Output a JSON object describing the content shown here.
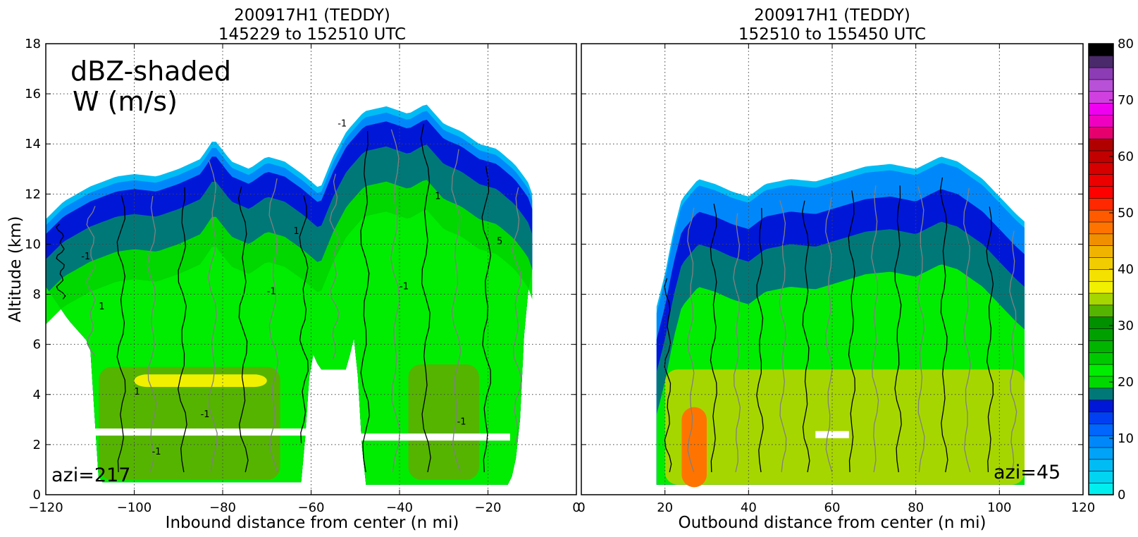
{
  "colors": {
    "dbz_levels": [
      "#00eeee",
      "#00d4f0",
      "#00bcf4",
      "#00a3f7",
      "#0088fb",
      "#0066fe",
      "#0040f2",
      "#0017d8",
      "#007878",
      "#00d800",
      "#00ec00",
      "#00c800",
      "#00b400",
      "#00a000",
      "#009000",
      "#55b400",
      "#a6d600",
      "#f0f000",
      "#f5e100",
      "#f0cc00",
      "#f0b400",
      "#f09000",
      "#ff7400",
      "#ff5a00",
      "#ff2800",
      "#ff0000",
      "#ec0000",
      "#d60000",
      "#c20000",
      "#b00000",
      "#e6006e",
      "#f000c0",
      "#f000f0",
      "#d040e0",
      "#b850d8",
      "#8c3cb4",
      "#4a2a6a",
      "#000000"
    ],
    "w_contour_positive": "#000000",
    "w_contour_negative": "#808080"
  },
  "chart_data": [
    {
      "type": "heatmap",
      "title_line1": "200917H1 (TEDDY)",
      "title_line2": "145229 to 152510 UTC",
      "xlabel": "Inbound distance from center (n mi)",
      "ylabel": "Altitude (km)",
      "xlim": [
        -120,
        0
      ],
      "ylim": [
        0,
        18
      ],
      "xticks": [
        "−120",
        "−100",
        "−80",
        "−60",
        "−40",
        "−20",
        "0"
      ],
      "yticks": [
        "0",
        "2",
        "4",
        "6",
        "8",
        "10",
        "12",
        "14",
        "16",
        "18"
      ],
      "grid": true,
      "annotation_main_1": "dBZ-shaded",
      "annotation_main_2": "W (m/s)",
      "azimuth_label": "azi=217",
      "contour_labels": [
        "1",
        "-1",
        "5"
      ],
      "echo_top_km": [
        [
          -120,
          11.0
        ],
        [
          -116,
          11.7
        ],
        [
          -110,
          12.3
        ],
        [
          -104,
          12.7
        ],
        [
          -100,
          12.8
        ],
        [
          -95,
          12.7
        ],
        [
          -90,
          13.0
        ],
        [
          -85,
          13.4
        ],
        [
          -82,
          14.2
        ],
        [
          -78,
          13.3
        ],
        [
          -74,
          13.0
        ],
        [
          -70,
          13.5
        ],
        [
          -66,
          13.3
        ],
        [
          -62,
          12.8
        ],
        [
          -58,
          12.2
        ],
        [
          -55,
          13.5
        ],
        [
          -52,
          14.5
        ],
        [
          -48,
          15.3
        ],
        [
          -43,
          15.5
        ],
        [
          -38,
          15.2
        ],
        [
          -34,
          15.6
        ],
        [
          -30,
          14.8
        ],
        [
          -26,
          14.5
        ],
        [
          -22,
          14.0
        ],
        [
          -18,
          13.8
        ],
        [
          -14,
          13.2
        ],
        [
          -11,
          12.5
        ],
        [
          -10,
          12.0
        ]
      ],
      "cloud_base_km": [
        [
          -120,
          8.3
        ],
        [
          -115,
          7.0
        ],
        [
          -110,
          6.0
        ],
        [
          -108,
          0.5
        ],
        [
          -62,
          0.5
        ],
        [
          -60,
          5.8
        ],
        [
          -58,
          5.0
        ],
        [
          -52,
          5.0
        ],
        [
          -50,
          6.5
        ],
        [
          -48,
          0.4
        ],
        [
          -15,
          0.4
        ],
        [
          -13,
          2.0
        ],
        [
          -12,
          6.0
        ],
        [
          -11,
          8.0
        ],
        [
          -10,
          9.0
        ]
      ],
      "dbz_layers": [
        {
          "dbz": 14,
          "top_offset_km": 0.6
        },
        {
          "dbz": 17,
          "top_offset_km": 1.6
        },
        {
          "dbz": 18,
          "top_offset_km": 3.0
        },
        {
          "dbz": 22,
          "top_offset_km": 4.2
        }
      ],
      "bright_band": [
        {
          "x0": -108,
          "x1": -67,
          "top_km": 5.1,
          "bottom_km": 0.6,
          "dbz": 31
        },
        {
          "x0": -38,
          "x1": -22,
          "top_km": 5.2,
          "bottom_km": 0.6,
          "dbz": 31
        },
        {
          "x0": -100,
          "x1": -70,
          "top_km": 4.8,
          "bottom_km": 4.3,
          "dbz": 35
        }
      ],
      "data_gaps": [
        {
          "x0": -113,
          "x1": -59,
          "y_km": 2.5
        },
        {
          "x0": -51,
          "x1": -15,
          "y_km": 2.3
        }
      ]
    },
    {
      "type": "heatmap",
      "title_line1": "200917H1 (TEDDY)",
      "title_line2": "152510 to 155450 UTC",
      "xlabel": "Outbound distance from center (n mi)",
      "xlim": [
        0,
        120
      ],
      "ylim": [
        0,
        18
      ],
      "xticks": [
        "0",
        "20",
        "40",
        "60",
        "80",
        "100",
        "120"
      ],
      "grid": true,
      "azimuth_label": "azi=45",
      "echo_top_km": [
        [
          18,
          7.5
        ],
        [
          20,
          8.8
        ],
        [
          22,
          10.5
        ],
        [
          24,
          11.8
        ],
        [
          26,
          12.2
        ],
        [
          28,
          12.6
        ],
        [
          32,
          12.4
        ],
        [
          36,
          12.1
        ],
        [
          40,
          11.9
        ],
        [
          44,
          12.4
        ],
        [
          50,
          12.6
        ],
        [
          56,
          12.5
        ],
        [
          62,
          12.8
        ],
        [
          68,
          13.1
        ],
        [
          74,
          13.2
        ],
        [
          80,
          13.0
        ],
        [
          86,
          13.5
        ],
        [
          90,
          13.3
        ],
        [
          96,
          12.6
        ],
        [
          100,
          11.9
        ],
        [
          104,
          11.2
        ],
        [
          106,
          10.9
        ]
      ],
      "cloud_base_km": [
        [
          14,
          0.4
        ],
        [
          106,
          0.4
        ]
      ],
      "dbz_layers": [
        {
          "dbz": 14,
          "top_offset_km": 1.3
        },
        {
          "dbz": 17,
          "top_offset_km": 2.6
        },
        {
          "dbz": 20,
          "top_offset_km": 4.3
        }
      ],
      "bright_band": [
        {
          "x0": 20,
          "x1": 106,
          "top_km": 5.0,
          "bottom_km": 0.4,
          "dbz": 33
        },
        {
          "x0": 24,
          "x1": 30,
          "top_km": 3.5,
          "bottom_km": 0.3,
          "dbz": 46
        }
      ],
      "data_gaps": [
        {
          "x0": 56,
          "x1": 64,
          "y_km": 2.4
        }
      ]
    },
    {
      "type": "colorbar",
      "ylim": [
        0,
        80
      ],
      "tick_labels": [
        "0",
        "10",
        "20",
        "30",
        "40",
        "50",
        "60",
        "70",
        "80"
      ],
      "level_step": 2.1
    }
  ]
}
